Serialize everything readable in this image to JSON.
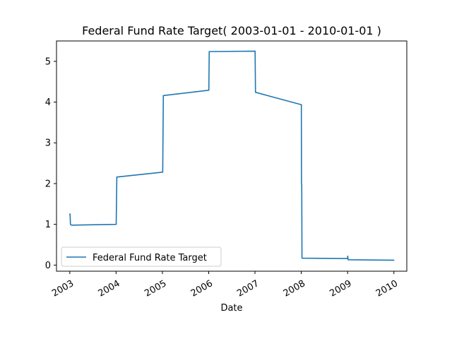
{
  "chart_data": {
    "type": "line",
    "title": "Federal Fund Rate Target( 2003-01-01 - 2010-01-01 )",
    "xlabel": "Date",
    "ylabel": "",
    "grid": false,
    "legend_position": "lower-left",
    "xlim": [
      "2002-09-18",
      "2010-04-13"
    ],
    "ylim": [
      -0.15,
      5.5
    ],
    "x_ticks": [
      {
        "date": "2003-01-01",
        "label": "2003"
      },
      {
        "date": "2004-01-01",
        "label": "2004"
      },
      {
        "date": "2005-01-01",
        "label": "2005"
      },
      {
        "date": "2006-01-01",
        "label": "2006"
      },
      {
        "date": "2007-01-01",
        "label": "2007"
      },
      {
        "date": "2008-01-01",
        "label": "2008"
      },
      {
        "date": "2009-01-01",
        "label": "2009"
      },
      {
        "date": "2010-01-01",
        "label": "2010"
      }
    ],
    "y_ticks": [
      0,
      1,
      2,
      3,
      4,
      5
    ],
    "series": [
      {
        "name": "Federal Fund Rate Target",
        "color": "#1f77b4",
        "points": [
          [
            "2003-01-01",
            1.25
          ],
          [
            "2003-01-03",
            1.25
          ],
          [
            "2003-01-06",
            1.0
          ],
          [
            "2003-01-15",
            0.98
          ],
          [
            "2003-12-31",
            1.0
          ],
          [
            "2004-01-02",
            1.0
          ],
          [
            "2004-01-07",
            2.16
          ],
          [
            "2004-12-31",
            2.28
          ],
          [
            "2005-01-03",
            2.28
          ],
          [
            "2005-01-08",
            4.16
          ],
          [
            "2005-12-30",
            4.29
          ],
          [
            "2006-01-02",
            4.29
          ],
          [
            "2006-01-05",
            5.24
          ],
          [
            "2006-12-31",
            5.25
          ],
          [
            "2007-01-02",
            5.25
          ],
          [
            "2007-01-05",
            4.24
          ],
          [
            "2007-12-28",
            3.94
          ],
          [
            "2008-01-02",
            3.94
          ],
          [
            "2008-01-03",
            2.0
          ],
          [
            "2008-01-05",
            1.96
          ],
          [
            "2008-01-07",
            0.17
          ],
          [
            "2008-12-31",
            0.16
          ],
          [
            "2009-01-02",
            0.22
          ],
          [
            "2009-01-05",
            0.13
          ],
          [
            "2009-12-31",
            0.12
          ]
        ]
      }
    ]
  }
}
